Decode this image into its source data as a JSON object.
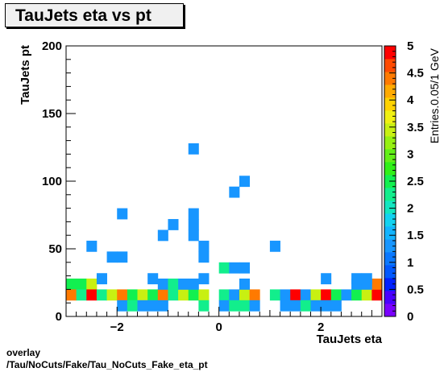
{
  "title": "TauJets eta vs pt",
  "footer": {
    "line1": "overlay",
    "line2": "/Tau/NoCuts/Fake/Tau_NoCuts_Fake_eta_pt"
  },
  "colors": {
    "axis": "#000000",
    "title_bg": "#f0f0f0",
    "palette": [
      "#7a00ff",
      "#4a00ff",
      "#0020ff",
      "#0058ff",
      "#0a78ff",
      "#1896ff",
      "#12b4ff",
      "#12d2f0",
      "#12e6c0",
      "#12ee8c",
      "#12f050",
      "#30f018",
      "#62f018",
      "#96f012",
      "#c8f012",
      "#f0f012",
      "#ffd200",
      "#ffaa00",
      "#ff7a00",
      "#ff4a00",
      "#ff0000"
    ]
  },
  "chart_data": {
    "type": "heatmap",
    "title": "TauJets eta vs pt",
    "xlabel": "TauJets eta",
    "ylabel": "TauJets pt",
    "zlabel": "Entries.0.05/1 GeV",
    "xlim": [
      -3,
      3.2
    ],
    "ylim": [
      0,
      200
    ],
    "zlim": [
      0,
      5
    ],
    "xticks": [
      -2,
      0,
      2
    ],
    "xtick_labels": [
      "−2",
      "0",
      "2"
    ],
    "yticks": [
      0,
      50,
      100,
      150,
      200
    ],
    "ytick_labels": [
      "0",
      "50",
      "100",
      "150",
      "200"
    ],
    "zticks": [
      0,
      0.5,
      1,
      1.5,
      2,
      2.5,
      3,
      3.5,
      4,
      4.5,
      5
    ],
    "ztick_labels": [
      "0",
      "0.5",
      "1",
      "1.5",
      "2",
      "2.5",
      "3",
      "3.5",
      "4",
      "4.5",
      "5"
    ],
    "bin_width": [
      0.2,
      8
    ],
    "bins": [
      {
        "x": -2.9,
        "y": 24,
        "z": 2.5
      },
      {
        "x": -2.7,
        "y": 24,
        "z": 2.5
      },
      {
        "x": -2.5,
        "y": 24,
        "z": 3.6
      },
      {
        "x": -2.9,
        "y": 16,
        "z": 4.4
      },
      {
        "x": -2.7,
        "y": 16,
        "z": 2.2
      },
      {
        "x": -2.5,
        "y": 16,
        "z": 5
      },
      {
        "x": -2.3,
        "y": 16,
        "z": 2.2
      },
      {
        "x": -2.1,
        "y": 16,
        "z": 3.6
      },
      {
        "x": -1.9,
        "y": 16,
        "z": 4.4
      },
      {
        "x": -1.7,
        "y": 16,
        "z": 2.5
      },
      {
        "x": -1.5,
        "y": 16,
        "z": 3.6
      },
      {
        "x": -1.3,
        "y": 16,
        "z": 2.5
      },
      {
        "x": -1.1,
        "y": 16,
        "z": 4.4
      },
      {
        "x": -0.9,
        "y": 16,
        "z": 2.2
      },
      {
        "x": -0.7,
        "y": 16,
        "z": 3.6
      },
      {
        "x": -0.5,
        "y": 16,
        "z": 2.5
      },
      {
        "x": -0.3,
        "y": 16,
        "z": 3.6
      },
      {
        "x": 0.1,
        "y": 16,
        "z": 2.2
      },
      {
        "x": 0.3,
        "y": 16,
        "z": 1.3
      },
      {
        "x": 0.5,
        "y": 16,
        "z": 3.6
      },
      {
        "x": 0.7,
        "y": 16,
        "z": 4.4
      },
      {
        "x": 1.1,
        "y": 16,
        "z": 2.2
      },
      {
        "x": 1.3,
        "y": 16,
        "z": 1.3
      },
      {
        "x": 1.5,
        "y": 16,
        "z": 5
      },
      {
        "x": 1.7,
        "y": 16,
        "z": 1.3
      },
      {
        "x": 1.9,
        "y": 16,
        "z": 3.6
      },
      {
        "x": 2.1,
        "y": 16,
        "z": 5
      },
      {
        "x": 2.3,
        "y": 16,
        "z": 2.5
      },
      {
        "x": 2.5,
        "y": 16,
        "z": 1.3
      },
      {
        "x": 2.7,
        "y": 16,
        "z": 2.5
      },
      {
        "x": 2.9,
        "y": 16,
        "z": 3.6
      },
      {
        "x": 3.1,
        "y": 16,
        "z": 5
      },
      {
        "x": -1.9,
        "y": 8,
        "z": 1.3
      },
      {
        "x": -1.7,
        "y": 8,
        "z": 2.2
      },
      {
        "x": -1.5,
        "y": 8,
        "z": 1.3
      },
      {
        "x": -1.3,
        "y": 8,
        "z": 1.3
      },
      {
        "x": -1.1,
        "y": 8,
        "z": 1.3
      },
      {
        "x": -0.3,
        "y": 8,
        "z": 2.2
      },
      {
        "x": 0.1,
        "y": 8,
        "z": 1.3
      },
      {
        "x": 0.3,
        "y": 8,
        "z": 2.2
      },
      {
        "x": 0.5,
        "y": 8,
        "z": 2.2
      },
      {
        "x": 0.7,
        "y": 8,
        "z": 1.3
      },
      {
        "x": 1.3,
        "y": 8,
        "z": 1.3
      },
      {
        "x": 1.5,
        "y": 8,
        "z": 1.3
      },
      {
        "x": 1.7,
        "y": 8,
        "z": 2.2
      },
      {
        "x": 1.9,
        "y": 8,
        "z": 1.3
      },
      {
        "x": 2.1,
        "y": 8,
        "z": 1.3
      },
      {
        "x": 2.3,
        "y": 8,
        "z": 1.3
      },
      {
        "x": 3.1,
        "y": 24,
        "z": 4.4
      },
      {
        "x": -1.1,
        "y": 24,
        "z": 1.3
      },
      {
        "x": -0.9,
        "y": 24,
        "z": 2.2
      },
      {
        "x": -0.7,
        "y": 24,
        "z": 1.3
      },
      {
        "x": -0.5,
        "y": 24,
        "z": 1.3
      },
      {
        "x": 0.5,
        "y": 24,
        "z": 1.3
      },
      {
        "x": 2.7,
        "y": 24,
        "z": 1.3
      },
      {
        "x": 2.9,
        "y": 24,
        "z": 1.3
      },
      {
        "x": -2.3,
        "y": 28,
        "z": 1.3
      },
      {
        "x": -1.3,
        "y": 28,
        "z": 1.3
      },
      {
        "x": -0.3,
        "y": 28,
        "z": 1.3
      },
      {
        "x": 2.1,
        "y": 28,
        "z": 1.3
      },
      {
        "x": 2.7,
        "y": 28,
        "z": 1.3
      },
      {
        "x": 2.9,
        "y": 28,
        "z": 1.3
      },
      {
        "x": 0.1,
        "y": 36,
        "z": 2.2
      },
      {
        "x": 0.3,
        "y": 36,
        "z": 1.3
      },
      {
        "x": 0.5,
        "y": 36,
        "z": 1.3
      },
      {
        "x": -2.1,
        "y": 44,
        "z": 1.3
      },
      {
        "x": -1.9,
        "y": 44,
        "z": 1.3
      },
      {
        "x": -0.3,
        "y": 44,
        "z": 1.3
      },
      {
        "x": -2.5,
        "y": 52,
        "z": 1.3
      },
      {
        "x": -0.3,
        "y": 52,
        "z": 1.3
      },
      {
        "x": 1.1,
        "y": 52,
        "z": 1.3
      },
      {
        "x": -1.1,
        "y": 60,
        "z": 1.3
      },
      {
        "x": -0.5,
        "y": 60,
        "z": 1.3
      },
      {
        "x": -0.9,
        "y": 68,
        "z": 1.3
      },
      {
        "x": -0.5,
        "y": 68,
        "z": 1.3
      },
      {
        "x": -1.9,
        "y": 76,
        "z": 1.3
      },
      {
        "x": -0.5,
        "y": 76,
        "z": 1.3
      },
      {
        "x": 0.3,
        "y": 92,
        "z": 1.3
      },
      {
        "x": 0.5,
        "y": 100,
        "z": 1.3
      },
      {
        "x": -0.5,
        "y": 124,
        "z": 1.3
      }
    ]
  }
}
